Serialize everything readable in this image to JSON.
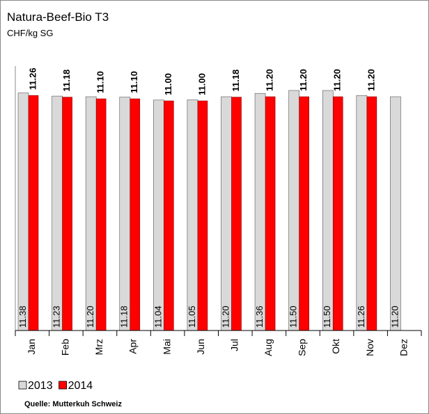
{
  "chart_data": {
    "type": "bar",
    "title": "Natura-Beef-Bio T3",
    "subtitle": "CHF/kg SG",
    "source": "Quelle: Mutterkuh Schweiz",
    "categories": [
      "Jan",
      "Feb",
      "Mrz",
      "Apr",
      "Mai",
      "Jun",
      "Jul",
      "Aug",
      "Sep",
      "Okt",
      "Nov",
      "Dez"
    ],
    "series": [
      {
        "name": "2013",
        "color": "#d9d9d9",
        "values": [
          11.38,
          11.23,
          11.2,
          11.18,
          11.04,
          11.05,
          11.2,
          11.36,
          11.5,
          11.5,
          11.26,
          11.2
        ],
        "value_labels": [
          "11.38",
          "11.23",
          "11.20",
          "11.18",
          "11.04",
          "11.05",
          "11.20",
          "11.36",
          "11.50",
          "11.50",
          "11.26",
          "11.20"
        ]
      },
      {
        "name": "2014",
        "color": "#ff0000",
        "values": [
          11.26,
          11.18,
          11.1,
          11.1,
          11.0,
          11.0,
          11.18,
          11.2,
          11.2,
          11.2,
          11.2,
          null
        ],
        "value_labels": [
          "11.26",
          "11.18",
          "11.10",
          "11.10",
          "11.00",
          "11.00",
          "11.18",
          "11.20",
          "11.20",
          "11.20",
          "11.20",
          null
        ]
      }
    ],
    "ylim": [
      0,
      12
    ]
  }
}
